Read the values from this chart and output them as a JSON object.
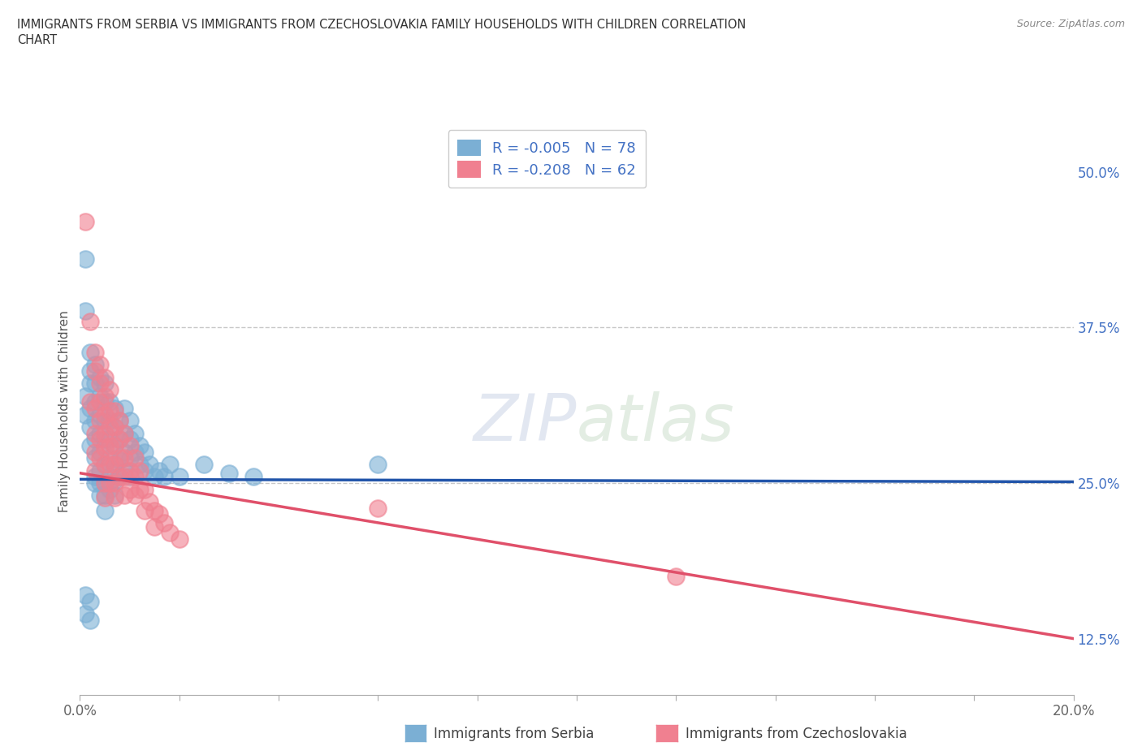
{
  "title_line1": "IMMIGRANTS FROM SERBIA VS IMMIGRANTS FROM CZECHOSLOVAKIA FAMILY HOUSEHOLDS WITH CHILDREN CORRELATION",
  "title_line2": "CHART",
  "source": "Source: ZipAtlas.com",
  "xlabel_serbia": "Immigrants from Serbia",
  "xlabel_czech": "Immigrants from Czechoslovakia",
  "ylabel": "Family Households with Children",
  "xlim": [
    0.0,
    0.2
  ],
  "ylim": [
    0.08,
    0.535
  ],
  "yticks_right": [
    0.125,
    0.25,
    0.375,
    0.5
  ],
  "ytick_labels_right": [
    "12.5%",
    "25.0%",
    "37.5%",
    "50.0%"
  ],
  "hlines": [
    0.25,
    0.375
  ],
  "serbia_R": -0.005,
  "serbia_N": 78,
  "czech_R": -0.208,
  "czech_N": 62,
  "serbia_color": "#7bafd4",
  "czech_color": "#f08090",
  "serbia_line_color": "#2255aa",
  "czech_line_color": "#e0506a",
  "serbia_line_y0": 0.253,
  "serbia_line_y1": 0.251,
  "czech_line_y0": 0.258,
  "czech_line_y1": 0.125,
  "serbia_scatter": [
    [
      0.001,
      0.43
    ],
    [
      0.001,
      0.388
    ],
    [
      0.001,
      0.32
    ],
    [
      0.001,
      0.305
    ],
    [
      0.002,
      0.355
    ],
    [
      0.002,
      0.34
    ],
    [
      0.002,
      0.33
    ],
    [
      0.002,
      0.31
    ],
    [
      0.002,
      0.295
    ],
    [
      0.002,
      0.28
    ],
    [
      0.003,
      0.345
    ],
    [
      0.003,
      0.33
    ],
    [
      0.003,
      0.315
    ],
    [
      0.003,
      0.3
    ],
    [
      0.003,
      0.285
    ],
    [
      0.003,
      0.27
    ],
    [
      0.003,
      0.255
    ],
    [
      0.003,
      0.25
    ],
    [
      0.004,
      0.335
    ],
    [
      0.004,
      0.32
    ],
    [
      0.004,
      0.305
    ],
    [
      0.004,
      0.29
    ],
    [
      0.004,
      0.275
    ],
    [
      0.004,
      0.26
    ],
    [
      0.004,
      0.25
    ],
    [
      0.004,
      0.24
    ],
    [
      0.005,
      0.33
    ],
    [
      0.005,
      0.315
    ],
    [
      0.005,
      0.3
    ],
    [
      0.005,
      0.285
    ],
    [
      0.005,
      0.265
    ],
    [
      0.005,
      0.25
    ],
    [
      0.005,
      0.24
    ],
    [
      0.005,
      0.228
    ],
    [
      0.006,
      0.315
    ],
    [
      0.006,
      0.3
    ],
    [
      0.006,
      0.285
    ],
    [
      0.006,
      0.27
    ],
    [
      0.006,
      0.255
    ],
    [
      0.006,
      0.245
    ],
    [
      0.007,
      0.31
    ],
    [
      0.007,
      0.295
    ],
    [
      0.007,
      0.28
    ],
    [
      0.007,
      0.265
    ],
    [
      0.007,
      0.252
    ],
    [
      0.007,
      0.24
    ],
    [
      0.008,
      0.3
    ],
    [
      0.008,
      0.285
    ],
    [
      0.008,
      0.268
    ],
    [
      0.008,
      0.255
    ],
    [
      0.009,
      0.31
    ],
    [
      0.009,
      0.29
    ],
    [
      0.009,
      0.275
    ],
    [
      0.009,
      0.26
    ],
    [
      0.01,
      0.3
    ],
    [
      0.01,
      0.285
    ],
    [
      0.01,
      0.27
    ],
    [
      0.01,
      0.255
    ],
    [
      0.011,
      0.29
    ],
    [
      0.011,
      0.275
    ],
    [
      0.012,
      0.28
    ],
    [
      0.012,
      0.265
    ],
    [
      0.013,
      0.275
    ],
    [
      0.013,
      0.26
    ],
    [
      0.014,
      0.265
    ],
    [
      0.015,
      0.255
    ],
    [
      0.016,
      0.26
    ],
    [
      0.017,
      0.255
    ],
    [
      0.018,
      0.265
    ],
    [
      0.02,
      0.255
    ],
    [
      0.025,
      0.265
    ],
    [
      0.03,
      0.258
    ],
    [
      0.035,
      0.255
    ],
    [
      0.06,
      0.265
    ],
    [
      0.001,
      0.16
    ],
    [
      0.001,
      0.145
    ],
    [
      0.002,
      0.155
    ],
    [
      0.002,
      0.14
    ]
  ],
  "czech_scatter": [
    [
      0.001,
      0.46
    ],
    [
      0.002,
      0.38
    ],
    [
      0.002,
      0.315
    ],
    [
      0.003,
      0.355
    ],
    [
      0.003,
      0.34
    ],
    [
      0.003,
      0.31
    ],
    [
      0.003,
      0.29
    ],
    [
      0.003,
      0.275
    ],
    [
      0.003,
      0.26
    ],
    [
      0.004,
      0.345
    ],
    [
      0.004,
      0.33
    ],
    [
      0.004,
      0.315
    ],
    [
      0.004,
      0.3
    ],
    [
      0.004,
      0.285
    ],
    [
      0.004,
      0.27
    ],
    [
      0.005,
      0.335
    ],
    [
      0.005,
      0.32
    ],
    [
      0.005,
      0.305
    ],
    [
      0.005,
      0.29
    ],
    [
      0.005,
      0.278
    ],
    [
      0.005,
      0.265
    ],
    [
      0.005,
      0.25
    ],
    [
      0.005,
      0.238
    ],
    [
      0.006,
      0.325
    ],
    [
      0.006,
      0.308
    ],
    [
      0.006,
      0.295
    ],
    [
      0.006,
      0.28
    ],
    [
      0.006,
      0.265
    ],
    [
      0.006,
      0.25
    ],
    [
      0.007,
      0.308
    ],
    [
      0.007,
      0.295
    ],
    [
      0.007,
      0.28
    ],
    [
      0.007,
      0.265
    ],
    [
      0.007,
      0.25
    ],
    [
      0.007,
      0.238
    ],
    [
      0.008,
      0.3
    ],
    [
      0.008,
      0.285
    ],
    [
      0.008,
      0.27
    ],
    [
      0.008,
      0.255
    ],
    [
      0.009,
      0.29
    ],
    [
      0.009,
      0.27
    ],
    [
      0.009,
      0.255
    ],
    [
      0.009,
      0.24
    ],
    [
      0.01,
      0.28
    ],
    [
      0.01,
      0.26
    ],
    [
      0.01,
      0.245
    ],
    [
      0.011,
      0.27
    ],
    [
      0.011,
      0.255
    ],
    [
      0.011,
      0.24
    ],
    [
      0.012,
      0.26
    ],
    [
      0.012,
      0.245
    ],
    [
      0.013,
      0.245
    ],
    [
      0.013,
      0.228
    ],
    [
      0.014,
      0.235
    ],
    [
      0.015,
      0.228
    ],
    [
      0.015,
      0.215
    ],
    [
      0.016,
      0.225
    ],
    [
      0.017,
      0.218
    ],
    [
      0.018,
      0.21
    ],
    [
      0.02,
      0.205
    ],
    [
      0.06,
      0.23
    ],
    [
      0.12,
      0.175
    ]
  ]
}
